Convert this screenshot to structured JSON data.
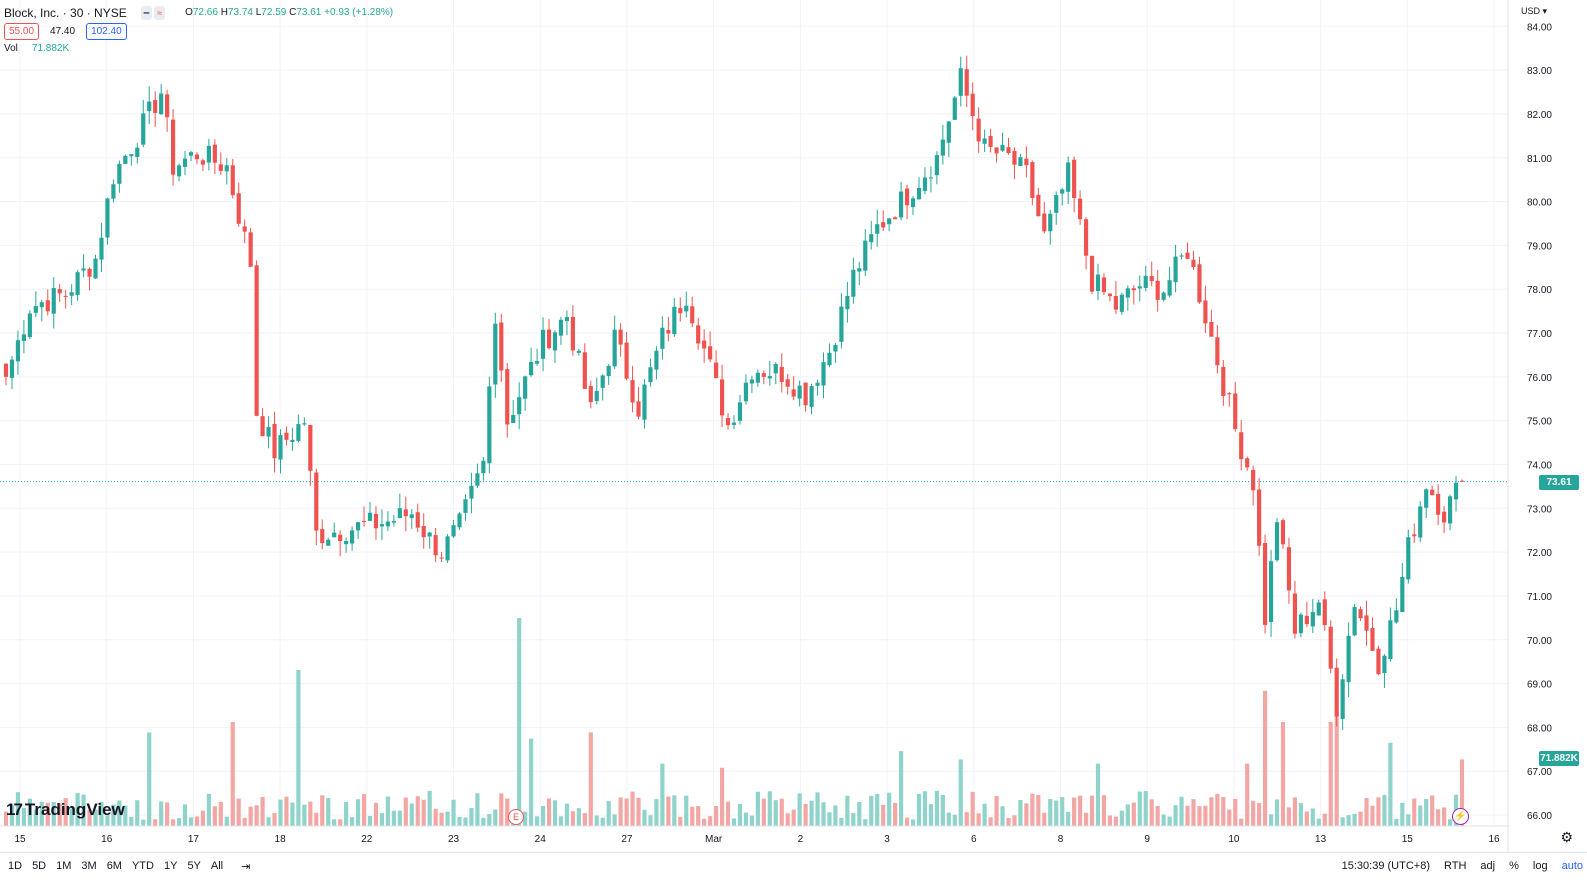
{
  "header": {
    "symbol": "Block, Inc. · 30 · NYSE",
    "ohlc": {
      "o_label": "O",
      "o": "72.66",
      "h_label": "H",
      "h": "73.74",
      "l_label": "L",
      "l": "72.59",
      "c_label": "C",
      "c": "73.61",
      "change": "+0.93 (+1.28%)"
    },
    "pills": {
      "sell": "55.00",
      "spread": "47.40",
      "buy": "102.40"
    },
    "volume_label": "Vol",
    "volume_value": "71.882K"
  },
  "currency": "USD",
  "last_price_tag": "73.61",
  "last_volume_tag": "71.882K",
  "logo_text": "TradingView",
  "colors": {
    "up": "#26a69a",
    "down": "#ef5350",
    "up_vol": "#8fd3cb",
    "down_vol": "#f3a7a5",
    "grid": "#f0f3fa"
  },
  "bottom_bar": {
    "ranges": [
      "1D",
      "5D",
      "1M",
      "3M",
      "6M",
      "YTD",
      "1Y",
      "5Y",
      "All"
    ],
    "time": "15:30:39 (UTC+8)",
    "session": "RTH",
    "adj": "adj",
    "percent": "%",
    "log": "log",
    "auto": "auto"
  },
  "chart_data": {
    "type": "candlestick",
    "y_axis_ticks": [
      "66.00",
      "67.00",
      "68.00",
      "69.00",
      "70.00",
      "71.00",
      "72.00",
      "73.00",
      "74.00",
      "75.00",
      "76.00",
      "77.00",
      "78.00",
      "79.00",
      "80.00",
      "81.00",
      "82.00",
      "83.00",
      "84.00"
    ],
    "ylim": [
      65.75,
      84.6
    ],
    "x_axis_labels": [
      "15",
      "16",
      "17",
      "18",
      "22",
      "23",
      "24",
      "27",
      "Mar",
      "2",
      "3",
      "6",
      "8",
      "9",
      "10",
      "13",
      "15",
      "16"
    ],
    "last_close": 73.61,
    "anchors": [
      {
        "i": 0,
        "p": 76.0
      },
      {
        "i": 4,
        "p": 77.6
      },
      {
        "i": 10,
        "p": 77.9
      },
      {
        "i": 15,
        "p": 78.7
      },
      {
        "i": 18,
        "p": 80.6
      },
      {
        "i": 22,
        "p": 81.5
      },
      {
        "i": 26,
        "p": 82.5
      },
      {
        "i": 28,
        "p": 80.8
      },
      {
        "i": 32,
        "p": 81.1
      },
      {
        "i": 37,
        "p": 80.8
      },
      {
        "i": 41,
        "p": 78.6
      },
      {
        "i": 42,
        "p": 75.2
      },
      {
        "i": 45,
        "p": 74.3
      },
      {
        "i": 50,
        "p": 75.0
      },
      {
        "i": 52,
        "p": 72.4
      },
      {
        "i": 60,
        "p": 72.6
      },
      {
        "i": 64,
        "p": 72.7
      },
      {
        "i": 68,
        "p": 72.9
      },
      {
        "i": 71,
        "p": 72.3
      },
      {
        "i": 73,
        "p": 72.0
      },
      {
        "i": 76,
        "p": 72.6
      },
      {
        "i": 80,
        "p": 74.0
      },
      {
        "i": 82,
        "p": 77.5
      },
      {
        "i": 84,
        "p": 75.0
      },
      {
        "i": 90,
        "p": 76.8
      },
      {
        "i": 94,
        "p": 77.4
      },
      {
        "i": 98,
        "p": 75.2
      },
      {
        "i": 102,
        "p": 76.9
      },
      {
        "i": 106,
        "p": 75.3
      },
      {
        "i": 110,
        "p": 76.9
      },
      {
        "i": 114,
        "p": 77.9
      },
      {
        "i": 118,
        "p": 76.2
      },
      {
        "i": 121,
        "p": 74.9
      },
      {
        "i": 125,
        "p": 76.2
      },
      {
        "i": 130,
        "p": 76.1
      },
      {
        "i": 134,
        "p": 75.6
      },
      {
        "i": 138,
        "p": 76.6
      },
      {
        "i": 142,
        "p": 78.3
      },
      {
        "i": 146,
        "p": 79.4
      },
      {
        "i": 150,
        "p": 80.0
      },
      {
        "i": 156,
        "p": 81.0
      },
      {
        "i": 160,
        "p": 82.8
      },
      {
        "i": 164,
        "p": 81.2
      },
      {
        "i": 168,
        "p": 81.0
      },
      {
        "i": 171,
        "p": 80.6
      },
      {
        "i": 174,
        "p": 79.2
      },
      {
        "i": 178,
        "p": 80.6
      },
      {
        "i": 182,
        "p": 78.2
      },
      {
        "i": 186,
        "p": 77.6
      },
      {
        "i": 190,
        "p": 78.1
      },
      {
        "i": 194,
        "p": 78.0
      },
      {
        "i": 198,
        "p": 78.9
      },
      {
        "i": 202,
        "p": 76.9
      },
      {
        "i": 206,
        "p": 74.8
      },
      {
        "i": 209,
        "p": 73.6
      },
      {
        "i": 211,
        "p": 70.5
      },
      {
        "i": 213,
        "p": 72.8
      },
      {
        "i": 216,
        "p": 70.2
      },
      {
        "i": 220,
        "p": 70.9
      },
      {
        "i": 223,
        "p": 68.5
      },
      {
        "i": 226,
        "p": 70.9
      },
      {
        "i": 230,
        "p": 69.5
      },
      {
        "i": 233,
        "p": 70.7
      },
      {
        "i": 235,
        "p": 72.1
      },
      {
        "i": 238,
        "p": 73.6
      },
      {
        "i": 241,
        "p": 72.9
      },
      {
        "i": 244,
        "p": 73.61
      }
    ],
    "volume_spikes": [
      {
        "i": 24,
        "v": 0.45
      },
      {
        "i": 38,
        "v": 0.5
      },
      {
        "i": 49,
        "v": 0.75
      },
      {
        "i": 86,
        "v": 1.0
      },
      {
        "i": 88,
        "v": 0.42
      },
      {
        "i": 98,
        "v": 0.45
      },
      {
        "i": 110,
        "v": 0.3
      },
      {
        "i": 120,
        "v": 0.28
      },
      {
        "i": 150,
        "v": 0.36
      },
      {
        "i": 160,
        "v": 0.32
      },
      {
        "i": 183,
        "v": 0.3
      },
      {
        "i": 208,
        "v": 0.3
      },
      {
        "i": 211,
        "v": 0.65
      },
      {
        "i": 214,
        "v": 0.5
      },
      {
        "i": 222,
        "v": 0.5
      },
      {
        "i": 223,
        "v": 0.55
      },
      {
        "i": 232,
        "v": 0.4
      },
      {
        "i": 244,
        "v": 0.32
      }
    ]
  }
}
